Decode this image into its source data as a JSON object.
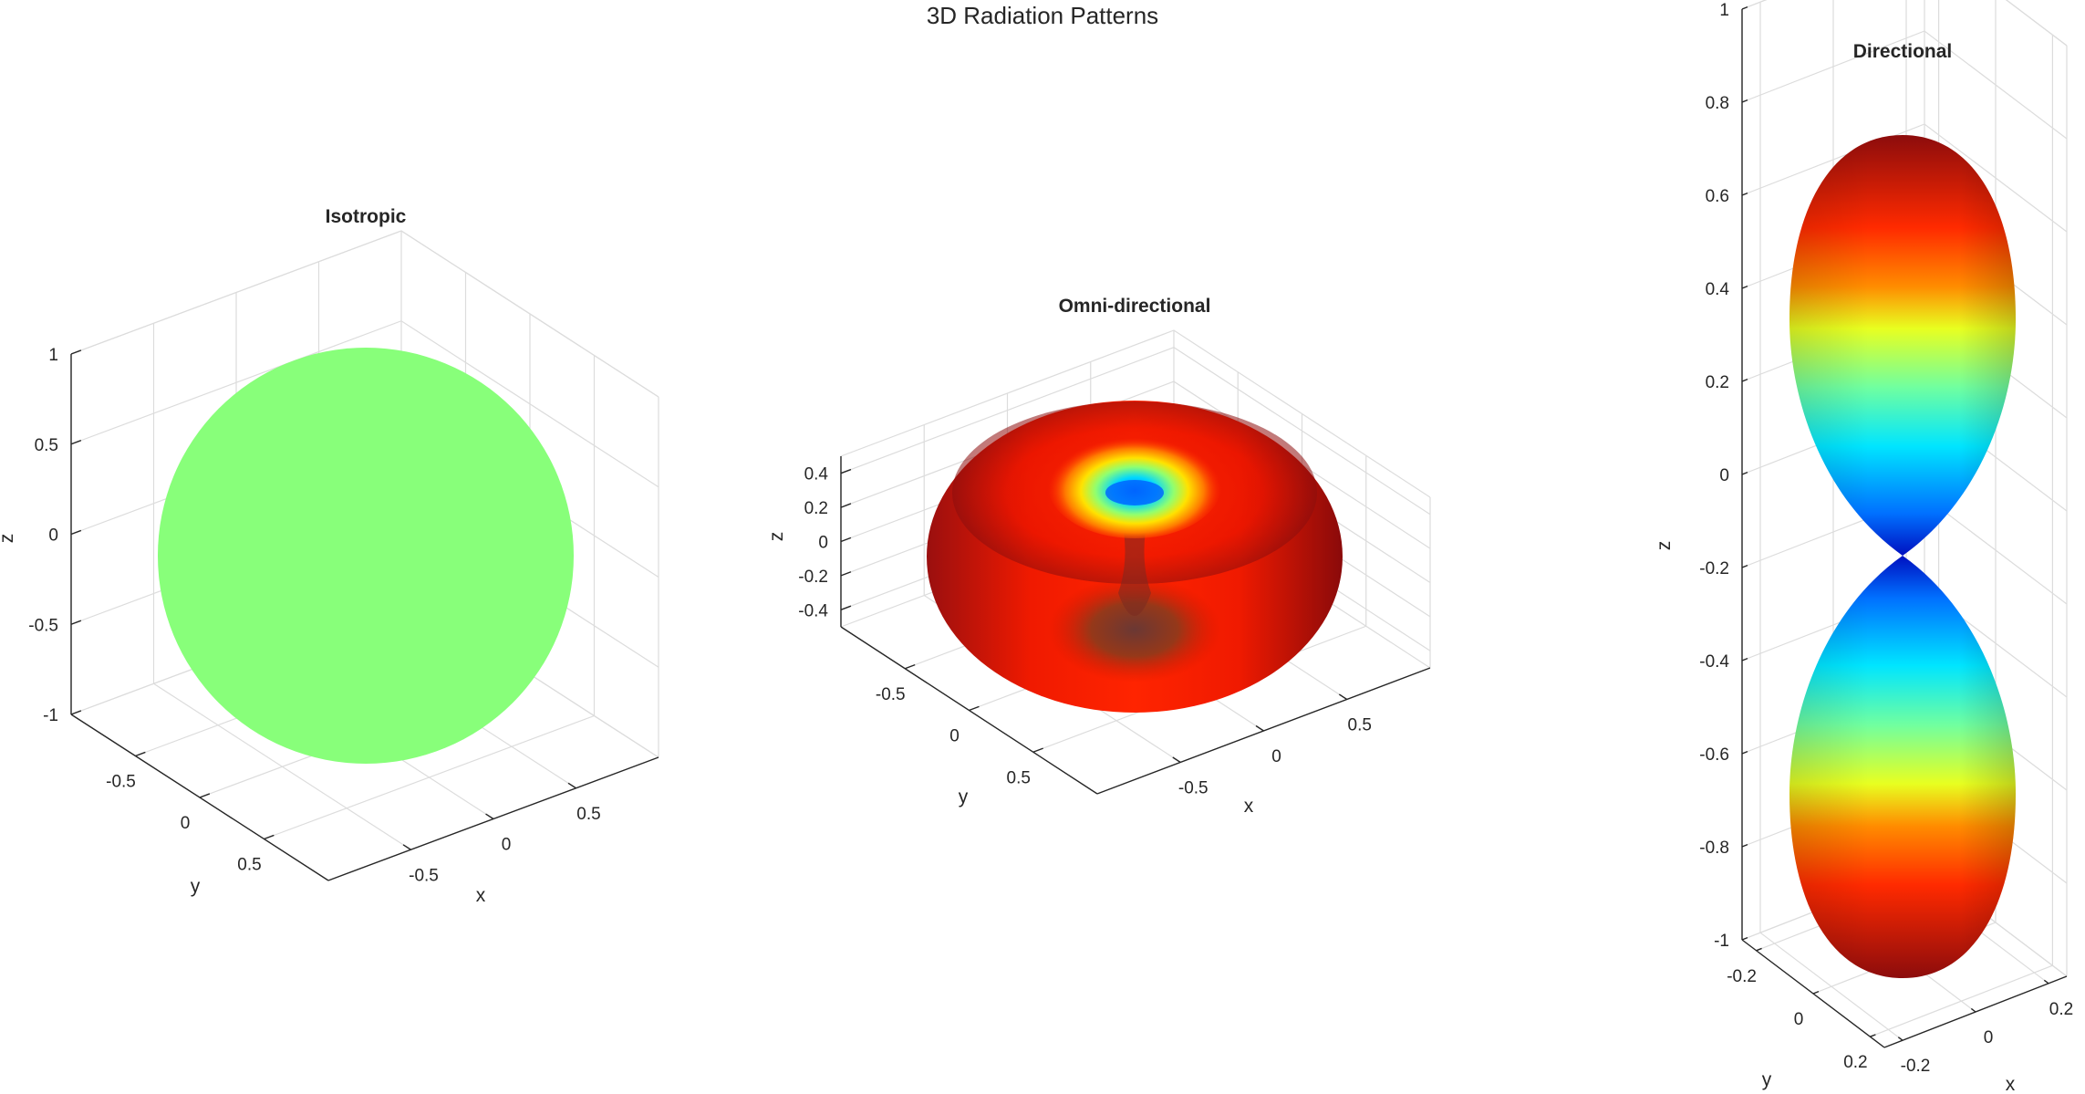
{
  "figure": {
    "title": "3D Radiation Patterns"
  },
  "chart_data": [
    {
      "type": "surface3d",
      "title": "Isotropic",
      "pattern": "r = 1",
      "xlabel": "x",
      "ylabel": "y",
      "zlabel": "z",
      "xlim": [
        -1,
        1
      ],
      "ylim": [
        -1,
        1
      ],
      "zlim": [
        -1,
        1
      ],
      "xticks": [
        -0.5,
        0,
        0.5
      ],
      "yticks": [
        -0.5,
        0,
        0.5
      ],
      "zticks": [
        -1,
        -0.5,
        0,
        0.5,
        1
      ],
      "xtick_labels": [
        "-0.5",
        "0",
        "0.5"
      ],
      "ytick_labels": [
        "-0.5",
        "0",
        "0.5"
      ],
      "ztick_labels": [
        "-1",
        "-0.5",
        "0",
        "0.5",
        "1"
      ],
      "color": "#88ff7a",
      "grid": true
    },
    {
      "type": "surface3d",
      "title": "Omni-directional",
      "pattern": "r = sin(theta)^2",
      "xlabel": "x",
      "ylabel": "y",
      "zlabel": "z",
      "xlim": [
        -1,
        1
      ],
      "ylim": [
        -1,
        1
      ],
      "zlim": [
        -0.5,
        0.5
      ],
      "xticks": [
        -0.5,
        0,
        0.5
      ],
      "yticks": [
        -0.5,
        0,
        0.5
      ],
      "zticks": [
        -0.4,
        -0.2,
        0,
        0.2,
        0.4
      ],
      "xtick_labels": [
        "-0.5",
        "0",
        "0.5"
      ],
      "ytick_labels": [
        "-0.5",
        "0",
        "0.5"
      ],
      "ztick_labels": [
        "-0.4",
        "-0.2",
        "0",
        "0.2",
        "0.4"
      ],
      "colormap": "jet",
      "grid": true
    },
    {
      "type": "surface3d",
      "title": "Directional",
      "pattern": "r = cos(theta)^2",
      "xlabel": "x",
      "ylabel": "y",
      "zlabel": "z",
      "xlim": [
        -0.25,
        0.25
      ],
      "ylim": [
        -0.25,
        0.25
      ],
      "zlim": [
        -1,
        1
      ],
      "xticks": [
        -0.2,
        0,
        0.2
      ],
      "yticks": [
        -0.2,
        0,
        0.2
      ],
      "zticks": [
        -1,
        -0.8,
        -0.6,
        -0.4,
        -0.2,
        0,
        0.2,
        0.4,
        0.6,
        0.8,
        1
      ],
      "xtick_labels": [
        "-0.2",
        "0",
        "0.2"
      ],
      "ytick_labels": [
        "-0.2",
        "0",
        "0.2"
      ],
      "ztick_labels": [
        "-1",
        "-0.8",
        "-0.6",
        "-0.4",
        "-0.2",
        "0",
        "0.2",
        "0.4",
        "0.6",
        "0.8",
        "1"
      ],
      "colormap": "jet",
      "grid": true
    }
  ]
}
